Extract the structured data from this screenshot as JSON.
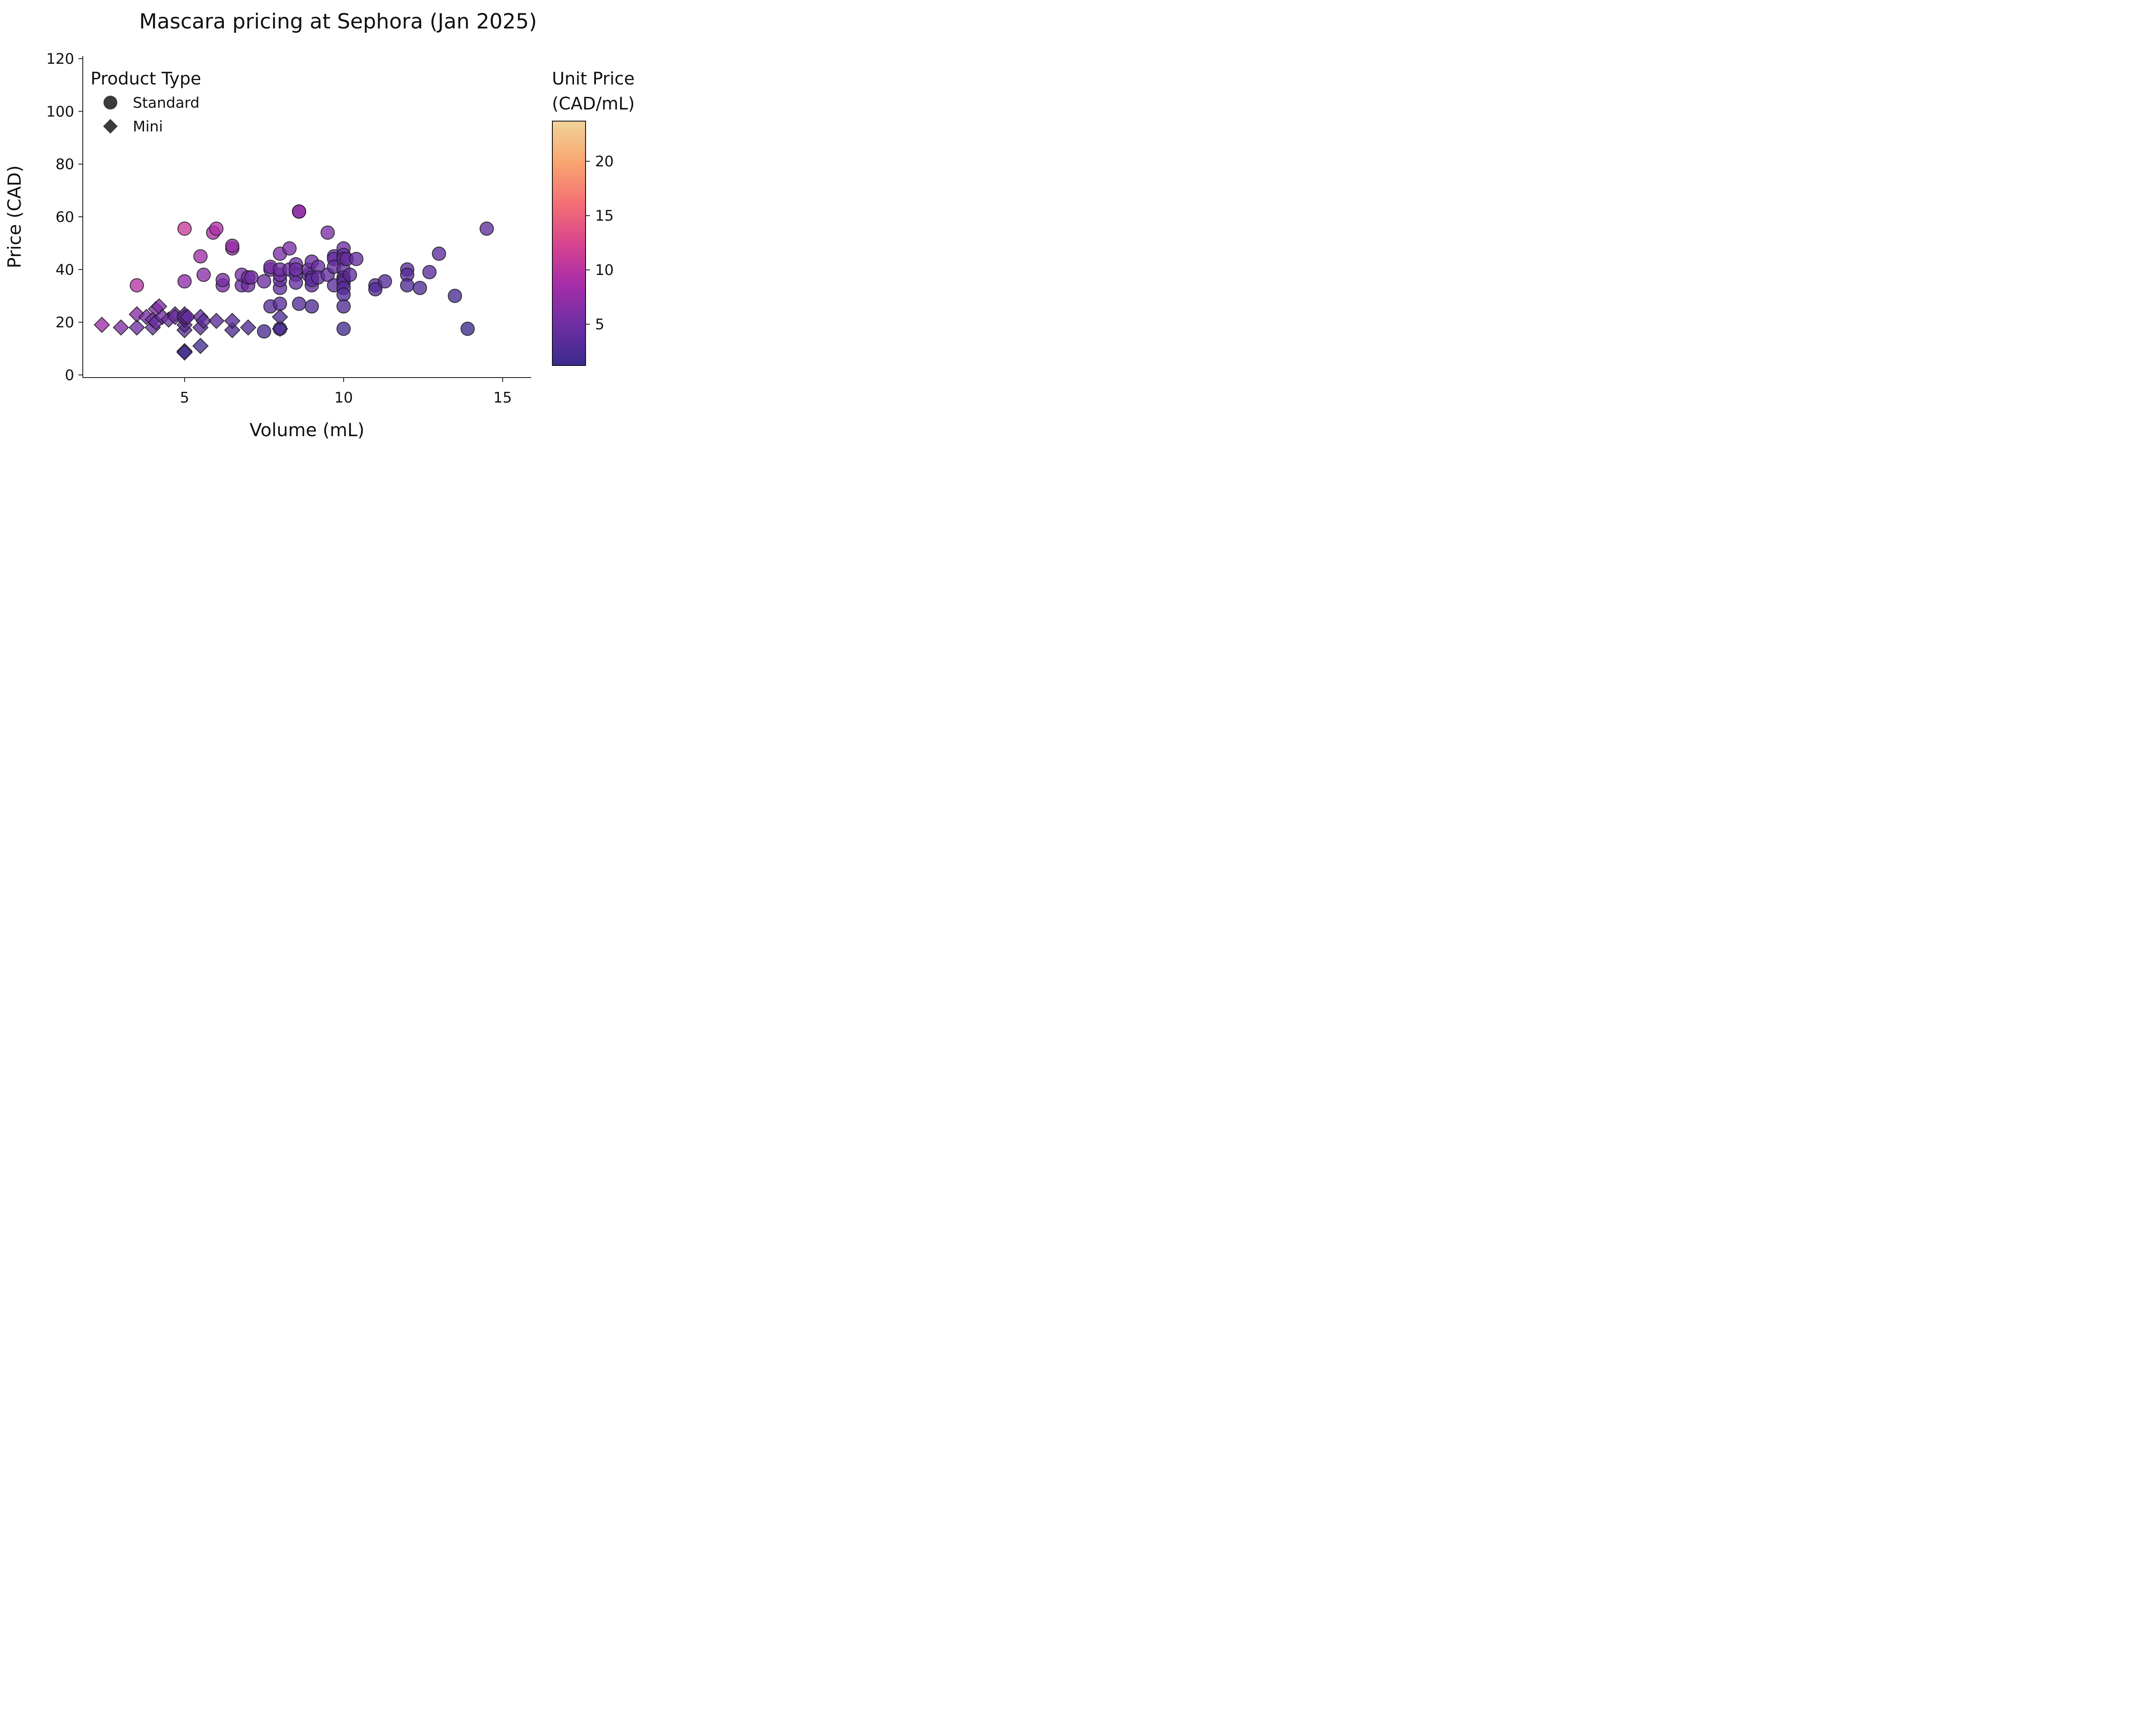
{
  "chart_data": {
    "type": "scatter",
    "title": "Mascara pricing at Sephora (Jan 2025)",
    "xlabel": "Volume (mL)",
    "ylabel": "Price (CAD)",
    "xlim": [
      1.8,
      15.9
    ],
    "ylim": [
      -1,
      121
    ],
    "xticks": [
      5,
      10,
      15
    ],
    "yticks": [
      0,
      20,
      40,
      60,
      80,
      100,
      120
    ],
    "grid": false,
    "legend": {
      "title": "Product Type",
      "placement": "top-left",
      "entries": [
        {
          "label": "Standard",
          "marker": "circle"
        },
        {
          "label": "Mini",
          "marker": "diamond"
        }
      ]
    },
    "colorbar": {
      "title_lines": [
        "Unit Price",
        "(CAD/mL)"
      ],
      "range": [
        1.2,
        23.7
      ],
      "ticks": [
        5,
        10,
        15,
        20
      ],
      "colormap": "magma-like",
      "stops": [
        "#3b2a8c",
        "#6e2ea3",
        "#a72da8",
        "#d9458f",
        "#f47174",
        "#f9a66f",
        "#f0d39a"
      ]
    },
    "series": [
      {
        "name": "Standard",
        "marker": "circle",
        "points": [
          [
            3.5,
            34
          ],
          [
            5.0,
            55.5
          ],
          [
            5.0,
            35.5
          ],
          [
            5.5,
            45
          ],
          [
            5.6,
            38
          ],
          [
            5.9,
            54
          ],
          [
            6.0,
            55.5
          ],
          [
            6.2,
            34
          ],
          [
            6.2,
            36
          ],
          [
            6.5,
            48
          ],
          [
            6.5,
            49
          ],
          [
            6.8,
            34
          ],
          [
            6.8,
            38
          ],
          [
            7.0,
            34
          ],
          [
            7.0,
            37
          ],
          [
            7.1,
            37
          ],
          [
            7.5,
            35.5
          ],
          [
            7.5,
            16.5
          ],
          [
            7.7,
            40
          ],
          [
            7.7,
            41
          ],
          [
            7.7,
            26
          ],
          [
            8.0,
            46
          ],
          [
            8.0,
            33
          ],
          [
            8.0,
            36
          ],
          [
            8.0,
            38
          ],
          [
            8.0,
            40
          ],
          [
            8.0,
            27
          ],
          [
            8.0,
            17.5
          ],
          [
            8.3,
            48
          ],
          [
            8.3,
            40
          ],
          [
            8.5,
            42
          ],
          [
            8.5,
            38
          ],
          [
            8.5,
            35
          ],
          [
            8.5,
            40
          ],
          [
            8.6,
            62
          ],
          [
            8.6,
            62
          ],
          [
            8.6,
            27
          ],
          [
            8.9,
            38
          ],
          [
            8.9,
            40
          ],
          [
            9.0,
            43
          ],
          [
            9.0,
            37
          ],
          [
            9.0,
            34
          ],
          [
            9.0,
            26
          ],
          [
            9.0,
            36
          ],
          [
            9.2,
            41
          ],
          [
            9.2,
            37
          ],
          [
            9.5,
            54
          ],
          [
            9.5,
            38
          ],
          [
            9.7,
            45
          ],
          [
            9.7,
            44
          ],
          [
            9.7,
            41
          ],
          [
            9.7,
            34
          ],
          [
            10.0,
            48
          ],
          [
            10.0,
            45.5
          ],
          [
            10.0,
            44
          ],
          [
            10.0,
            40
          ],
          [
            10.0,
            37
          ],
          [
            10.0,
            36
          ],
          [
            10.0,
            35
          ],
          [
            10.0,
            33
          ],
          [
            10.0,
            30.5
          ],
          [
            10.0,
            26
          ],
          [
            10.0,
            17.5
          ],
          [
            10.1,
            44
          ],
          [
            10.2,
            38
          ],
          [
            10.4,
            44
          ],
          [
            11.0,
            34
          ],
          [
            11.0,
            32.5
          ],
          [
            11.3,
            35.5
          ],
          [
            12.0,
            40
          ],
          [
            12.0,
            38
          ],
          [
            12.0,
            34
          ],
          [
            12.4,
            33
          ],
          [
            12.7,
            39
          ],
          [
            13.0,
            46
          ],
          [
            13.5,
            30
          ],
          [
            13.9,
            17.5
          ],
          [
            14.5,
            55.5
          ]
        ],
        "unit_price": [
          9.7,
          11.1,
          7.1,
          8.2,
          6.8,
          9.2,
          9.2,
          5.5,
          5.8,
          7.4,
          7.5,
          5.0,
          5.6,
          4.9,
          5.3,
          5.2,
          4.7,
          2.2,
          5.2,
          5.3,
          3.4,
          5.8,
          4.1,
          4.5,
          4.8,
          5.0,
          3.4,
          2.2,
          5.8,
          4.8,
          4.9,
          4.5,
          4.1,
          4.7,
          7.2,
          7.2,
          3.1,
          4.3,
          4.5,
          4.8,
          4.1,
          3.8,
          2.9,
          4.0,
          4.5,
          4.0,
          5.7,
          4.0,
          4.6,
          4.5,
          4.2,
          3.5,
          4.8,
          4.55,
          4.4,
          4.0,
          3.7,
          3.6,
          3.5,
          3.3,
          3.05,
          2.6,
          1.75,
          4.36,
          3.73,
          4.23,
          3.09,
          2.95,
          3.14,
          3.33,
          3.17,
          2.83,
          2.66,
          3.07,
          3.54,
          2.22,
          1.26,
          3.83
        ]
      },
      {
        "name": "Mini",
        "marker": "diamond",
        "points": [
          [
            2.4,
            19
          ],
          [
            3.0,
            18
          ],
          [
            3.5,
            18
          ],
          [
            3.5,
            23
          ],
          [
            3.8,
            22
          ],
          [
            4.0,
            18
          ],
          [
            4.0,
            21
          ],
          [
            4.1,
            20
          ],
          [
            4.1,
            25
          ],
          [
            4.2,
            26
          ],
          [
            4.3,
            22
          ],
          [
            4.5,
            21
          ],
          [
            4.7,
            23
          ],
          [
            4.7,
            22
          ],
          [
            5.0,
            17
          ],
          [
            5.0,
            19
          ],
          [
            5.0,
            21
          ],
          [
            5.0,
            22
          ],
          [
            5.0,
            23
          ],
          [
            5.0,
            22
          ],
          [
            5.0,
            9
          ],
          [
            5.0,
            8.5
          ],
          [
            5.1,
            22
          ],
          [
            5.5,
            18
          ],
          [
            5.5,
            22
          ],
          [
            5.5,
            11
          ],
          [
            5.6,
            20.5
          ],
          [
            6.0,
            20.5
          ],
          [
            6.5,
            17
          ],
          [
            6.5,
            20.5
          ],
          [
            7.0,
            18
          ],
          [
            8.0,
            17.5
          ],
          [
            8.0,
            22
          ]
        ],
        "unit_price": [
          7.9,
          6.0,
          5.1,
          6.6,
          5.8,
          4.5,
          5.3,
          4.9,
          6.1,
          6.2,
          5.1,
          4.7,
          4.9,
          4.7,
          3.4,
          3.8,
          4.2,
          4.4,
          4.6,
          4.4,
          1.8,
          1.7,
          4.3,
          3.3,
          4.0,
          2.0,
          3.7,
          3.4,
          2.6,
          3.15,
          2.6,
          2.2,
          2.75
        ]
      }
    ]
  }
}
